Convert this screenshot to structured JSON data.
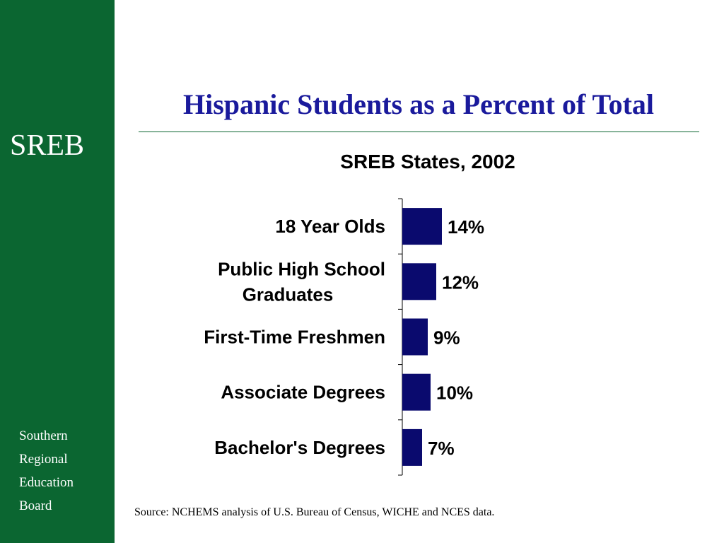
{
  "sidebar": {
    "brand": "SREB",
    "org_lines": [
      "Southern",
      "Regional",
      "Education",
      "Board"
    ]
  },
  "slide": {
    "title": "Hispanic Students as a Percent of Total",
    "source": "Source: NCHEMS analysis of U.S. Bureau of Census, WICHE  and NCES data."
  },
  "colors": {
    "sidebar_green": "#0b6631",
    "title_blue": "#1a1a9c",
    "bar_navy": "#0a0a6e"
  },
  "chart_data": {
    "type": "bar",
    "orientation": "horizontal",
    "title": "SREB States, 2002",
    "categories": [
      [
        "18 Year Olds"
      ],
      [
        "Public High School",
        "Graduates"
      ],
      [
        "First-Time Freshmen"
      ],
      [
        "Associate Degrees"
      ],
      [
        "Bachelor's Degrees"
      ]
    ],
    "values": [
      14,
      12,
      9,
      10,
      7
    ],
    "data_labels": [
      "14%",
      "12%",
      "9%",
      "10%",
      "7%"
    ],
    "unit": "%",
    "xlim": [
      0,
      100
    ],
    "grid": false,
    "legend": "none"
  }
}
